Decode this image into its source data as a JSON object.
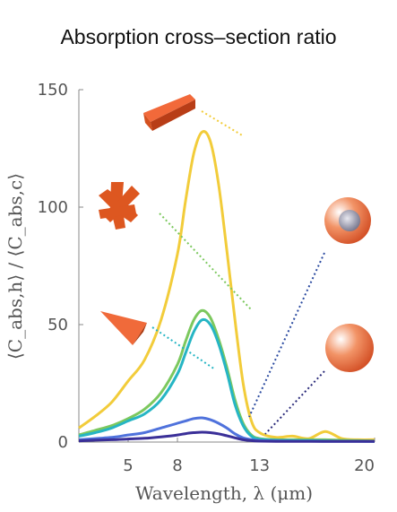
{
  "chart_data": {
    "type": "line",
    "title": "Absorption cross–section ratio",
    "xlabel": "Wavelength, λ (μm)",
    "ylabel": "⟨C_abs,h⟩ / ⟨C_abs,c⟩",
    "xlim": [
      2,
      20
    ],
    "ylim": [
      0,
      150
    ],
    "x_ticks": [
      5,
      8,
      13,
      20
    ],
    "y_ticks": [
      0,
      50,
      100,
      150
    ],
    "grid": false,
    "x": [
      2,
      3,
      4,
      5,
      6,
      7,
      8,
      8.5,
      9,
      9.5,
      10,
      10.5,
      11,
      11.5,
      12,
      12.5,
      13,
      14,
      15,
      16,
      17,
      18,
      19,
      20
    ],
    "series": [
      {
        "color": "#f2cc3a",
        "marker_shape": "rod",
        "values": [
          6,
          11,
          17,
          26,
          35,
          52,
          80,
          103,
          123,
          132,
          128,
          110,
          82,
          52,
          25,
          9,
          4,
          2,
          2.5,
          1.5,
          4.5,
          1.5,
          1,
          1
        ]
      },
      {
        "color": "#7cc85e",
        "marker_shape": "star",
        "values": [
          3,
          5,
          7,
          10,
          14,
          21,
          33,
          43,
          52,
          56,
          53,
          44,
          32,
          18,
          8,
          3,
          1.5,
          1,
          1,
          1,
          1,
          0.8,
          0.6,
          0.5
        ]
      },
      {
        "color": "#26b5c4",
        "marker_shape": "triangle",
        "values": [
          2.5,
          4,
          6,
          9,
          12,
          18,
          29,
          38,
          47,
          52,
          50,
          42,
          30,
          16,
          7,
          2.5,
          1.2,
          0.8,
          0.7,
          0.6,
          0.5,
          0.4,
          0.4,
          0.3
        ]
      },
      {
        "color": "#4f72dc",
        "marker_shape": "core-shell sphere",
        "values": [
          1,
          1.5,
          2,
          3,
          4,
          6,
          8,
          9,
          10,
          10.3,
          9.5,
          8,
          6,
          3.5,
          1.8,
          1,
          0.6,
          0.5,
          0.4,
          0.4,
          0.3,
          0.3,
          0.3,
          0.3
        ]
      },
      {
        "color": "#3a2f98",
        "marker_shape": "sphere",
        "values": [
          0.5,
          0.8,
          1,
          1.3,
          1.6,
          2.2,
          3,
          3.6,
          4,
          4.2,
          4,
          3.5,
          2.7,
          1.8,
          1,
          0.6,
          0.4,
          0.3,
          0.3,
          0.3,
          0.3,
          0.3,
          0.3,
          0.3
        ]
      }
    ]
  }
}
